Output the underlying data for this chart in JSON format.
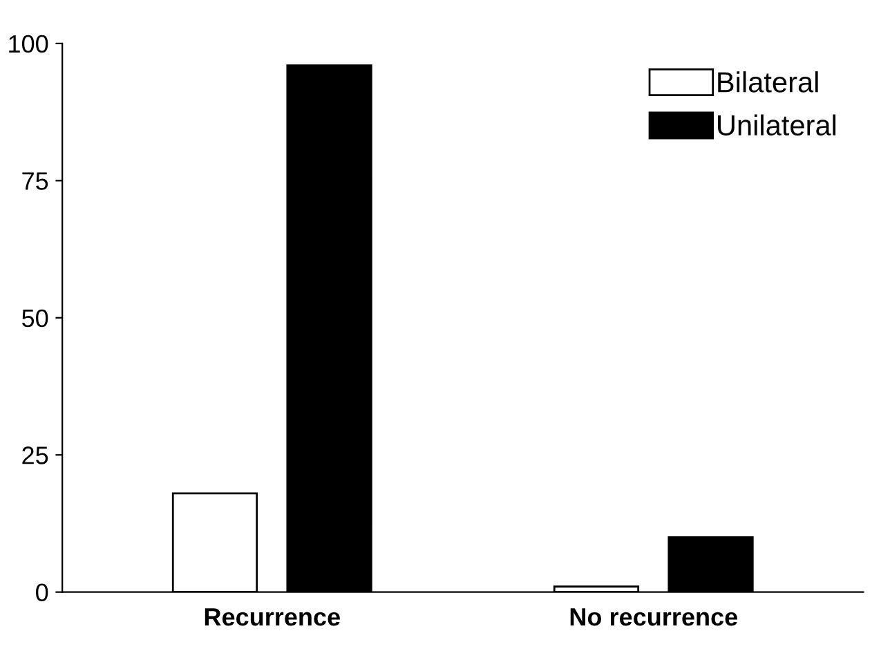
{
  "chart_data": {
    "type": "bar",
    "categories": [
      "Recurrence",
      "No recurrence"
    ],
    "series": [
      {
        "name": "Bilateral",
        "color": "#ffffff",
        "values": [
          18,
          1
        ]
      },
      {
        "name": "Unilateral",
        "color": "#000000",
        "values": [
          96,
          10
        ]
      }
    ],
    "ylim": [
      0,
      100
    ],
    "yticks": [
      0,
      25,
      50,
      75,
      100
    ],
    "grid": false,
    "legend": "top right"
  }
}
